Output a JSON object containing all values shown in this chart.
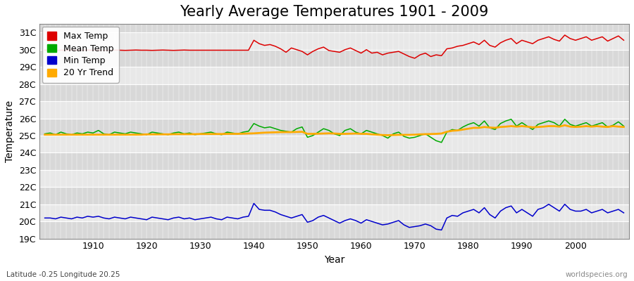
{
  "title": "Yearly Average Temperatures 1901 - 2009",
  "xlabel": "Year",
  "ylabel": "Temperature",
  "subtitle_left": "Latitude -0.25 Longitude 20.25",
  "subtitle_right": "worldspecies.org",
  "legend_labels": [
    "Max Temp",
    "Mean Temp",
    "Min Temp",
    "20 Yr Trend"
  ],
  "legend_colors": [
    "#dd0000",
    "#00aa00",
    "#0000cc",
    "#ffaa00"
  ],
  "years": [
    1901,
    1902,
    1903,
    1904,
    1905,
    1906,
    1907,
    1908,
    1909,
    1910,
    1911,
    1912,
    1913,
    1914,
    1915,
    1916,
    1917,
    1918,
    1919,
    1920,
    1921,
    1922,
    1923,
    1924,
    1925,
    1926,
    1927,
    1928,
    1929,
    1930,
    1931,
    1932,
    1933,
    1934,
    1935,
    1936,
    1937,
    1938,
    1939,
    1940,
    1941,
    1942,
    1943,
    1944,
    1945,
    1946,
    1947,
    1948,
    1949,
    1950,
    1951,
    1952,
    1953,
    1954,
    1955,
    1956,
    1957,
    1958,
    1959,
    1960,
    1961,
    1962,
    1963,
    1964,
    1965,
    1966,
    1967,
    1968,
    1969,
    1970,
    1971,
    1972,
    1973,
    1974,
    1975,
    1976,
    1977,
    1978,
    1979,
    1980,
    1981,
    1982,
    1983,
    1984,
    1985,
    1986,
    1987,
    1988,
    1989,
    1990,
    1991,
    1992,
    1993,
    1994,
    1995,
    1996,
    1997,
    1998,
    1999,
    2000,
    2001,
    2002,
    2003,
    2004,
    2005,
    2006,
    2007,
    2008,
    2009
  ],
  "max_temp": [
    29.98,
    29.97,
    29.96,
    29.97,
    29.97,
    29.98,
    29.96,
    29.97,
    29.98,
    29.97,
    29.97,
    29.96,
    29.97,
    29.98,
    29.97,
    29.96,
    29.97,
    29.98,
    29.97,
    29.97,
    29.96,
    29.97,
    29.98,
    29.97,
    29.96,
    29.97,
    29.98,
    29.97,
    29.97,
    29.97,
    29.97,
    29.97,
    29.97,
    29.97,
    29.97,
    29.97,
    29.97,
    29.97,
    29.97,
    30.55,
    30.35,
    30.25,
    30.3,
    30.2,
    30.05,
    29.85,
    30.1,
    30.0,
    29.9,
    29.7,
    29.9,
    30.05,
    30.15,
    29.95,
    29.9,
    29.85,
    30.0,
    30.1,
    29.95,
    29.8,
    30.0,
    29.8,
    29.85,
    29.7,
    29.8,
    29.85,
    29.9,
    29.75,
    29.6,
    29.5,
    29.7,
    29.8,
    29.6,
    29.7,
    29.65,
    30.05,
    30.1,
    30.2,
    30.25,
    30.35,
    30.45,
    30.3,
    30.55,
    30.25,
    30.15,
    30.4,
    30.55,
    30.65,
    30.35,
    30.55,
    30.45,
    30.35,
    30.55,
    30.65,
    30.75,
    30.6,
    30.5,
    30.85,
    30.65,
    30.55,
    30.65,
    30.75,
    30.55,
    30.65,
    30.75,
    30.5,
    30.65,
    30.8,
    30.55
  ],
  "mean_temp": [
    25.1,
    25.15,
    25.05,
    25.2,
    25.1,
    25.05,
    25.15,
    25.1,
    25.2,
    25.15,
    25.3,
    25.1,
    25.05,
    25.2,
    25.15,
    25.1,
    25.2,
    25.15,
    25.1,
    25.05,
    25.2,
    25.15,
    25.1,
    25.05,
    25.15,
    25.2,
    25.1,
    25.15,
    25.05,
    25.1,
    25.15,
    25.2,
    25.1,
    25.05,
    25.2,
    25.15,
    25.1,
    25.2,
    25.25,
    25.7,
    25.55,
    25.45,
    25.5,
    25.4,
    25.3,
    25.25,
    25.2,
    25.4,
    25.5,
    24.9,
    25.0,
    25.2,
    25.4,
    25.3,
    25.1,
    25.0,
    25.3,
    25.4,
    25.2,
    25.1,
    25.3,
    25.2,
    25.1,
    25.0,
    24.85,
    25.1,
    25.2,
    24.95,
    24.85,
    24.9,
    25.0,
    25.1,
    24.9,
    24.7,
    24.6,
    25.2,
    25.35,
    25.3,
    25.5,
    25.65,
    25.75,
    25.55,
    25.85,
    25.45,
    25.35,
    25.7,
    25.85,
    25.95,
    25.55,
    25.75,
    25.55,
    25.35,
    25.65,
    25.75,
    25.85,
    25.75,
    25.55,
    25.95,
    25.65,
    25.55,
    25.65,
    25.75,
    25.55,
    25.65,
    25.75,
    25.5,
    25.6,
    25.8,
    25.55
  ],
  "min_temp": [
    20.2,
    20.2,
    20.15,
    20.25,
    20.2,
    20.15,
    20.25,
    20.2,
    20.3,
    20.25,
    20.3,
    20.2,
    20.15,
    20.25,
    20.2,
    20.15,
    20.25,
    20.2,
    20.15,
    20.1,
    20.25,
    20.2,
    20.15,
    20.1,
    20.2,
    20.25,
    20.15,
    20.2,
    20.1,
    20.15,
    20.2,
    20.25,
    20.15,
    20.1,
    20.25,
    20.2,
    20.15,
    20.25,
    20.3,
    21.05,
    20.7,
    20.65,
    20.65,
    20.55,
    20.4,
    20.3,
    20.2,
    20.3,
    20.4,
    19.95,
    20.05,
    20.25,
    20.35,
    20.2,
    20.05,
    19.9,
    20.05,
    20.15,
    20.05,
    19.9,
    20.1,
    20.0,
    19.9,
    19.8,
    19.85,
    19.95,
    20.05,
    19.8,
    19.65,
    19.7,
    19.75,
    19.85,
    19.75,
    19.55,
    19.5,
    20.2,
    20.35,
    20.3,
    20.5,
    20.6,
    20.7,
    20.5,
    20.8,
    20.4,
    20.2,
    20.6,
    20.8,
    20.9,
    20.5,
    20.7,
    20.5,
    20.3,
    20.7,
    20.8,
    21.0,
    20.8,
    20.6,
    21.0,
    20.7,
    20.6,
    20.6,
    20.7,
    20.5,
    20.6,
    20.7,
    20.5,
    20.6,
    20.7,
    20.5
  ],
  "trend": [
    25.05,
    25.05,
    25.05,
    25.05,
    25.05,
    25.05,
    25.05,
    25.05,
    25.05,
    25.05,
    25.05,
    25.05,
    25.05,
    25.05,
    25.05,
    25.05,
    25.05,
    25.05,
    25.05,
    25.07,
    25.07,
    25.07,
    25.07,
    25.07,
    25.08,
    25.08,
    25.08,
    25.08,
    25.08,
    25.09,
    25.09,
    25.09,
    25.09,
    25.09,
    25.1,
    25.1,
    25.1,
    25.11,
    25.12,
    25.13,
    25.15,
    25.17,
    25.18,
    25.19,
    25.2,
    25.2,
    25.2,
    25.21,
    25.22,
    25.1,
    25.1,
    25.11,
    25.12,
    25.13,
    25.12,
    25.1,
    25.1,
    25.11,
    25.12,
    25.1,
    25.1,
    25.07,
    25.05,
    25.03,
    25.02,
    25.03,
    25.04,
    25.04,
    25.04,
    25.05,
    25.07,
    25.08,
    25.09,
    25.1,
    25.12,
    25.22,
    25.28,
    25.3,
    25.35,
    25.4,
    25.45,
    25.45,
    25.5,
    25.47,
    25.45,
    25.5,
    25.52,
    25.55,
    25.52,
    25.55,
    25.52,
    25.48,
    25.5,
    25.52,
    25.55,
    25.55,
    25.52,
    25.6,
    25.52,
    25.5,
    25.52,
    25.55,
    25.52,
    25.55,
    25.52,
    25.5,
    25.55,
    25.52,
    25.5
  ],
  "ylim": [
    19.0,
    31.5
  ],
  "yticks": [
    19,
    20,
    21,
    22,
    23,
    24,
    25,
    26,
    27,
    28,
    29,
    30,
    31
  ],
  "ytick_labels": [
    "19C",
    "20C",
    "21C",
    "22C",
    "23C",
    "24C",
    "25C",
    "26C",
    "27C",
    "28C",
    "29C",
    "30C",
    "31C"
  ],
  "xlim": [
    1900,
    2010
  ],
  "xticks": [
    1910,
    1920,
    1930,
    1940,
    1950,
    1960,
    1970,
    1980,
    1990,
    2000
  ],
  "bg_color": "#ffffff",
  "plot_bg_color": "#e8e8e8",
  "grid_color": "#ffffff",
  "line_width": 1.1,
  "title_fontsize": 15,
  "axis_label_fontsize": 10,
  "tick_fontsize": 9,
  "legend_fontsize": 9
}
